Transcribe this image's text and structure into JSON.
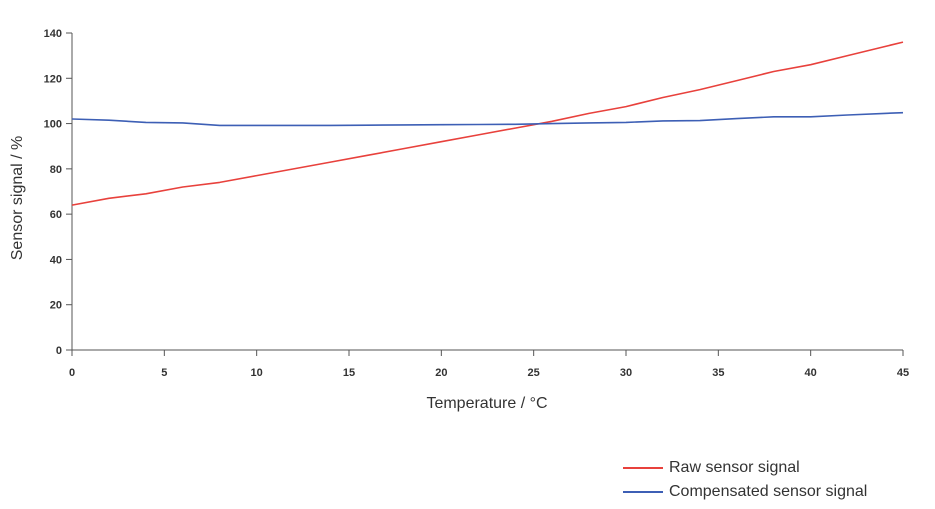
{
  "chart_data": {
    "type": "line",
    "title": "",
    "xlabel": "Temperature / °C",
    "ylabel": "Sensor signal / %",
    "xlim": [
      0,
      45
    ],
    "ylim": [
      0,
      140
    ],
    "xticks": [
      0,
      5,
      10,
      15,
      20,
      25,
      30,
      35,
      40,
      45
    ],
    "yticks": [
      0,
      20,
      40,
      60,
      80,
      100,
      120,
      140
    ],
    "grid": false,
    "legend_position": "bottom-right",
    "series": [
      {
        "name": "Raw sensor signal",
        "color": "#e8413c",
        "x": [
          0,
          2,
          4,
          6,
          8,
          10,
          12,
          14,
          16,
          18,
          20,
          22,
          24,
          26,
          28,
          30,
          32,
          34,
          36,
          38,
          40,
          42,
          44,
          45
        ],
        "y": [
          64,
          67,
          69,
          72,
          74,
          77,
          80,
          83,
          86,
          89,
          92,
          95,
          98,
          101,
          104.5,
          107.5,
          111.5,
          115,
          119,
          123,
          126,
          130,
          134,
          136
        ]
      },
      {
        "name": "Compensated sensor signal",
        "color": "#3d5fb5",
        "x": [
          0,
          2,
          4,
          6,
          8,
          10,
          12,
          14,
          16,
          18,
          20,
          22,
          24,
          26,
          28,
          30,
          32,
          34,
          36,
          38,
          40,
          42,
          44,
          45
        ],
        "y": [
          102,
          101.5,
          100.5,
          100.3,
          99.2,
          99.2,
          99.2,
          99.2,
          99.3,
          99.4,
          99.5,
          99.6,
          99.7,
          100,
          100.3,
          100.5,
          101.2,
          101.3,
          102.2,
          103,
          103,
          103.8,
          104.5,
          104.8
        ]
      }
    ]
  }
}
